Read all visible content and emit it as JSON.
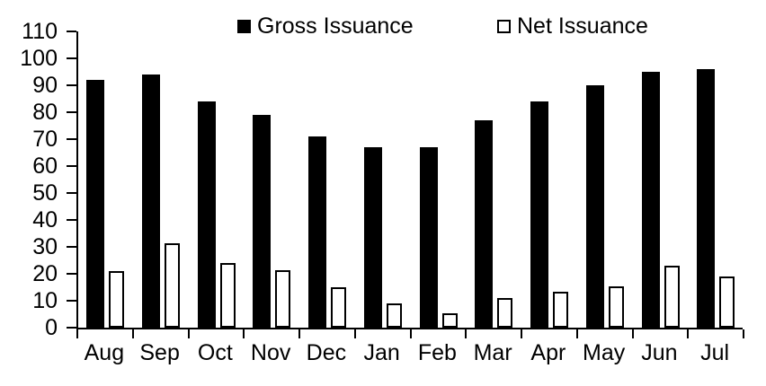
{
  "colors": {
    "gross_fill": "#000000",
    "net_fill": "#ffffff",
    "net_border": "#000000",
    "axis": "#000000",
    "background": "#ffffff"
  },
  "chart_data": {
    "type": "bar",
    "categories": [
      "Aug",
      "Sep",
      "Oct",
      "Nov",
      "Dec",
      "Jan",
      "Feb",
      "Mar",
      "Apr",
      "May",
      "Jun",
      "Jul"
    ],
    "series": [
      {
        "name": "Gross Issuance",
        "style": "solid-black",
        "values": [
          92,
          94,
          84,
          79,
          71,
          67,
          67,
          77,
          84,
          90,
          95,
          96
        ]
      },
      {
        "name": "Net Issuance",
        "style": "white-outlined",
        "values": [
          21,
          31.5,
          24,
          21.5,
          15,
          9,
          5.5,
          11,
          13.5,
          15.5,
          23,
          19
        ]
      }
    ],
    "title": "",
    "xlabel": "",
    "ylabel": "",
    "ylim": [
      0,
      110
    ],
    "ytick_step": 10,
    "grid": false,
    "legend_position": "top"
  }
}
